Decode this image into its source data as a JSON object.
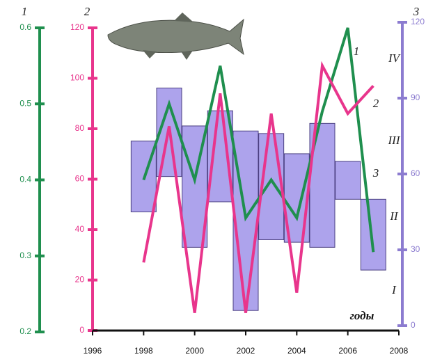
{
  "chart_data": {
    "type": "combo",
    "x": [
      1998,
      1999,
      2000,
      2001,
      2002,
      2003,
      2004,
      2005,
      2006,
      2007
    ],
    "xlim": [
      1996,
      2008
    ],
    "xticks": [
      1996,
      1998,
      2000,
      2002,
      2004,
      2006,
      2008
    ],
    "xlabel": "годы",
    "series": [
      {
        "name": "1",
        "type": "line",
        "color": "#1f8f4e",
        "values": [
          0.4,
          0.5,
          0.4,
          0.55,
          0.35,
          0.4,
          0.35,
          0.49,
          0.6,
          0.305
        ],
        "ylim": [
          0.2,
          0.6
        ],
        "yticks": [
          0.2,
          0.3,
          0.4,
          0.5,
          0.6
        ]
      },
      {
        "name": "2",
        "type": "line",
        "color": "#e8358c",
        "values": [
          27,
          81,
          7,
          94,
          7,
          86,
          15,
          105,
          86,
          97
        ],
        "ylim": [
          0,
          120
        ],
        "yticks": [
          0,
          20,
          40,
          60,
          80,
          100,
          120
        ]
      },
      {
        "name": "3",
        "type": "range-bar",
        "color": "#8c7cd0",
        "low": [
          45,
          59,
          31,
          49,
          6,
          34,
          33,
          31,
          50,
          22
        ],
        "high": [
          73,
          94,
          79,
          85,
          77,
          76,
          68,
          80,
          65,
          50
        ],
        "ylim": [
          0,
          120
        ],
        "yticks": [
          0,
          30,
          60,
          90,
          120
        ]
      }
    ],
    "annotations": [
      "IV",
      "III",
      "II",
      "I"
    ]
  }
}
